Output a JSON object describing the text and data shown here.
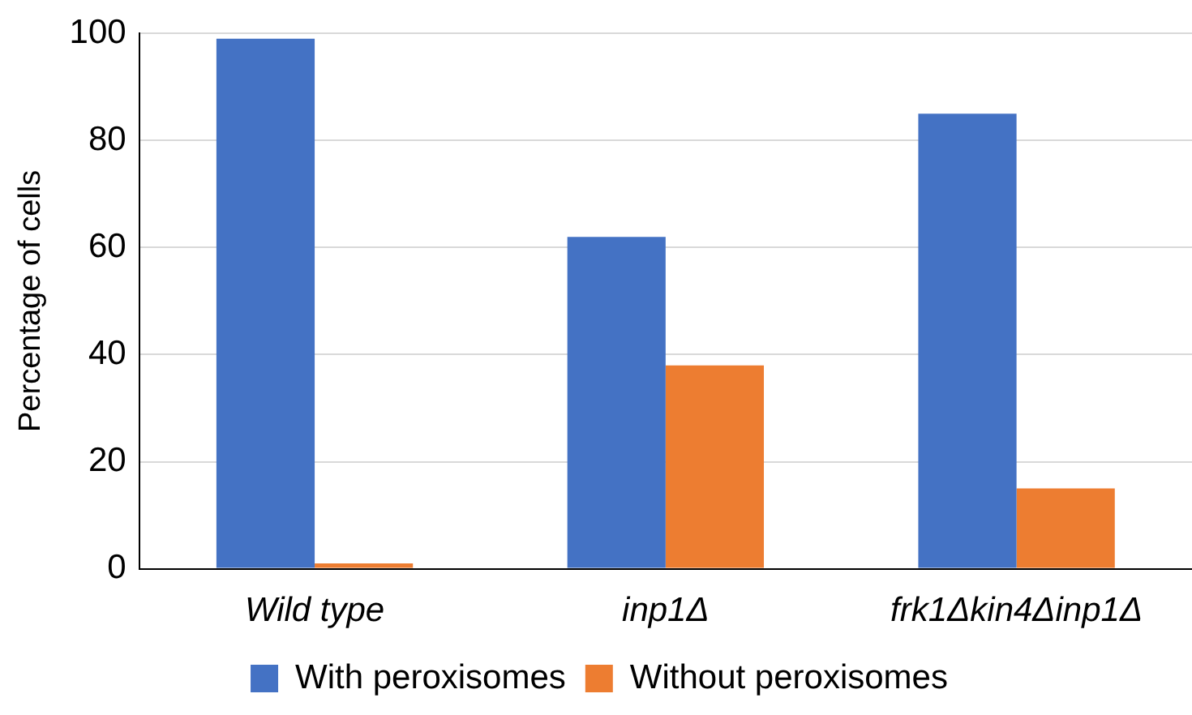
{
  "chart_data": {
    "type": "bar",
    "ylabel": "Percentage of cells",
    "categories": [
      "Wild type",
      "inp1Δ",
      "frk1Δkin4Δinp1Δ"
    ],
    "series": [
      {
        "name": "With peroxisomes",
        "color": "#4472c4",
        "values": [
          99,
          62,
          85
        ]
      },
      {
        "name": "Without peroxisomes",
        "color": "#ed7d31",
        "values": [
          1,
          38,
          15
        ]
      }
    ],
    "ylim": [
      0,
      100
    ],
    "yticks": [
      0,
      20,
      40,
      60,
      80,
      100
    ],
    "grid": "y",
    "legend": "bottom"
  }
}
